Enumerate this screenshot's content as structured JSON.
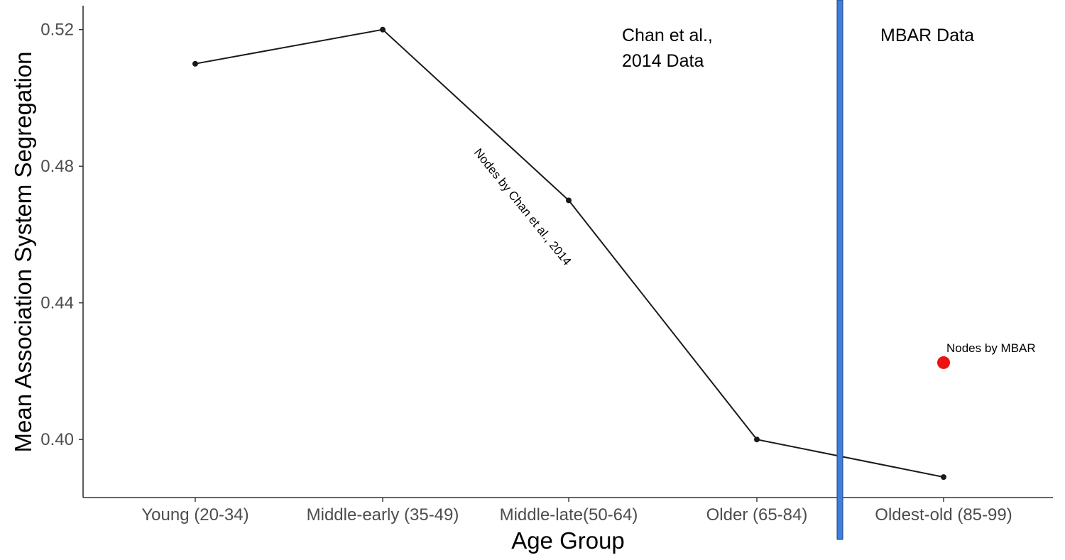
{
  "chart_data": {
    "type": "line",
    "xlabel": "Age Group",
    "ylabel": "Mean Association System Segregation",
    "categories": [
      "Young (20-34)",
      "Middle-early (35-49)",
      "Middle-late(50-64)",
      "Older (65-84)",
      "Oldest-old (85-99)"
    ],
    "series": [
      {
        "values": [
          0.51,
          0.52,
          0.47,
          0.4,
          0.389
        ],
        "color": "#1a1a1a"
      },
      {
        "values": [
          null,
          null,
          null,
          null,
          0.4225
        ],
        "color": "#ee1111",
        "marker": "large-dot"
      }
    ],
    "ylim": [
      0.383,
      0.527
    ],
    "yticks": [
      0.4,
      0.44,
      0.48,
      0.52
    ],
    "ytick_labels": [
      "0.40",
      "0.44",
      "0.48",
      "0.52"
    ],
    "grid": false,
    "annotations": {
      "left_region": [
        "Chan et al.,",
        "2014 Data"
      ],
      "right_region": "MBAR Data",
      "line_label": "Nodes by Chan et al., 2014",
      "point_label": "Nodes by MBAR"
    },
    "divider_color": "#3d7fe0"
  }
}
